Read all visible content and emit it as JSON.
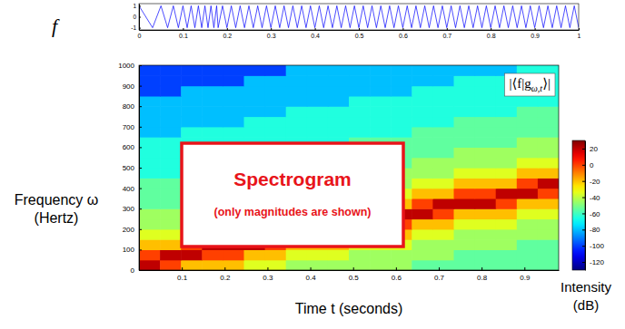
{
  "chart_data": [
    {
      "type": "line",
      "title": "f",
      "color": "#0000ff",
      "x": [
        0,
        0.0309,
        0.05,
        0.0651,
        0.0781,
        0.0896,
        0.1,
        0.1096,
        0.1186,
        0.1271,
        0.1351,
        0.1427,
        0.15,
        0.157,
        0.1637,
        0.1703,
        0.1766,
        0.18,
        0.19,
        0.2,
        0.21,
        0.22,
        0.23,
        0.24,
        0.25,
        0.26,
        0.27,
        0.28,
        0.29,
        0.3,
        0.31,
        0.32,
        0.33,
        0.34,
        0.35,
        0.36,
        0.37,
        0.38,
        0.39,
        0.4,
        0.41,
        0.42,
        0.43,
        0.44,
        0.45,
        0.46,
        0.47,
        0.48,
        0.49,
        0.5,
        0.51,
        0.52,
        0.53,
        0.54,
        0.55,
        0.56,
        0.57,
        0.58,
        0.59,
        0.6,
        0.61,
        0.62,
        0.63,
        0.64,
        0.65,
        0.66,
        0.67,
        0.68,
        0.69,
        0.7,
        0.71,
        0.72,
        0.73,
        0.74,
        0.75,
        0.76,
        0.77,
        0.78,
        0.79,
        0.8,
        0.81,
        0.82,
        0.83,
        0.84,
        0.85,
        0.86,
        0.87,
        0.88,
        0.89,
        0.9,
        0.91,
        0.92,
        0.93,
        0.94,
        0.95,
        0.96,
        0.97,
        0.98,
        0.99,
        1
      ],
      "values": [
        1,
        -1,
        1,
        -1,
        1,
        -1,
        1,
        -1,
        1,
        -1,
        1,
        -1,
        1,
        -1,
        1,
        -1,
        1,
        -1,
        1,
        -1,
        1,
        -1,
        1,
        -1,
        1,
        -1,
        1,
        -1,
        1,
        -1,
        1,
        -1,
        1,
        -1,
        1,
        -1,
        1,
        -1,
        1,
        -1,
        1,
        -1,
        1,
        -1,
        1,
        -1,
        1,
        -1,
        1,
        -1,
        1,
        -1,
        1,
        -1,
        1,
        -1,
        1,
        -1,
        1,
        -1,
        1,
        -1,
        1,
        -1,
        1,
        -1,
        1,
        -1,
        1,
        -1,
        1,
        -1,
        1,
        -1,
        1,
        -1,
        1,
        -1,
        1,
        -1,
        1,
        -1,
        1,
        -1,
        1,
        -1,
        1,
        -1,
        1,
        -1,
        1,
        -1,
        1,
        -1,
        1,
        -1,
        1,
        -1,
        1,
        -1
      ],
      "xlim": [
        0,
        1
      ],
      "ylim": [
        -1.2,
        1.2
      ],
      "xticks": [
        0,
        0.1,
        0.2,
        0.3,
        0.4,
        0.5,
        0.6,
        0.7,
        0.8,
        0.9,
        1
      ],
      "yticks": [
        -1,
        0,
        1
      ]
    },
    {
      "type": "heatmap",
      "x_label": "Time t (seconds)",
      "y_label": [
        "Frequency ω",
        "(Hertz)"
      ],
      "corner_label": [
        "|⟨f|g",
        "ω,t",
        "⟩|"
      ],
      "annotation": [
        "Spectrogram",
        "(only magnitudes are shown)"
      ],
      "xlim": [
        0,
        0.98
      ],
      "ylim": [
        0,
        1000
      ],
      "xticks": [
        0.1,
        0.2,
        0.3,
        0.4,
        0.5,
        0.6,
        0.7,
        0.8,
        0.9
      ],
      "yticks": [
        0,
        100,
        200,
        300,
        400,
        500,
        600,
        700,
        800,
        900,
        1000
      ],
      "x": [
        0.0245,
        0.0735,
        0.1225,
        0.1715,
        0.2205,
        0.2695,
        0.3185,
        0.3675,
        0.4165,
        0.4655,
        0.5145,
        0.5635,
        0.6125,
        0.6615,
        0.7105,
        0.7595,
        0.8085,
        0.8575,
        0.9065,
        0.9555
      ],
      "y": [
        25,
        75,
        125,
        175,
        225,
        275,
        325,
        375,
        425,
        475,
        525,
        575,
        625,
        675,
        725,
        775,
        825,
        875,
        925,
        975
      ],
      "cells": [
        [
          20,
          0,
          -20,
          -20,
          -20,
          -35,
          -35,
          -45,
          -45,
          -45,
          -45,
          -45,
          -45,
          -55,
          -55,
          -55,
          -55,
          -55,
          -55,
          -55
        ],
        [
          0,
          20,
          20,
          0,
          0,
          -20,
          -20,
          -35,
          -35,
          -35,
          -45,
          -45,
          -45,
          -45,
          -45,
          -55,
          -55,
          -55,
          -55,
          -55
        ],
        [
          -20,
          -20,
          0,
          20,
          20,
          20,
          0,
          -20,
          -20,
          -20,
          -35,
          -35,
          -35,
          -45,
          -45,
          -45,
          -45,
          -45,
          -55,
          -55
        ],
        [
          -35,
          -35,
          -20,
          -20,
          -20,
          0,
          20,
          20,
          20,
          0,
          -20,
          -20,
          -20,
          -35,
          -35,
          -45,
          -45,
          -45,
          -45,
          -45
        ],
        [
          -45,
          -45,
          -35,
          -35,
          -35,
          -20,
          -20,
          0,
          0,
          20,
          20,
          0,
          0,
          -20,
          -20,
          -35,
          -35,
          -35,
          -45,
          -45
        ],
        [
          -45,
          -45,
          -45,
          -45,
          -45,
          -35,
          -35,
          -20,
          -20,
          -20,
          0,
          20,
          20,
          20,
          0,
          -20,
          -20,
          -20,
          -35,
          -35
        ],
        [
          -55,
          -55,
          -45,
          -45,
          -45,
          -45,
          -45,
          -35,
          -35,
          -35,
          -20,
          -20,
          -20,
          0,
          20,
          20,
          20,
          0,
          -20,
          -20
        ],
        [
          -55,
          -55,
          -55,
          -55,
          -55,
          -45,
          -45,
          -45,
          -45,
          -45,
          -35,
          -35,
          -35,
          -20,
          -20,
          0,
          0,
          20,
          20,
          0
        ],
        [
          -55,
          -55,
          -55,
          -55,
          -55,
          -55,
          -55,
          -45,
          -45,
          -45,
          -45,
          -45,
          -45,
          -35,
          -35,
          -20,
          -20,
          -20,
          0,
          20
        ],
        [
          -65,
          -65,
          -55,
          -55,
          -55,
          -55,
          -55,
          -55,
          -55,
          -55,
          -45,
          -45,
          -45,
          -45,
          -45,
          -35,
          -35,
          -35,
          -20,
          -20
        ],
        [
          -65,
          -65,
          -65,
          -65,
          -65,
          -55,
          -55,
          -55,
          -55,
          -55,
          -55,
          -55,
          -55,
          -45,
          -45,
          -45,
          -45,
          -45,
          -35,
          -35
        ],
        [
          -65,
          -65,
          -65,
          -65,
          -65,
          -65,
          -65,
          -55,
          -55,
          -55,
          -55,
          -55,
          -55,
          -55,
          -55,
          -45,
          -45,
          -45,
          -45,
          -45
        ],
        [
          -65,
          -65,
          -65,
          -65,
          -65,
          -65,
          -65,
          -65,
          -65,
          -65,
          -55,
          -55,
          -55,
          -55,
          -55,
          -55,
          -55,
          -55,
          -45,
          -45
        ],
        [
          -80,
          -80,
          -65,
          -65,
          -65,
          -65,
          -65,
          -65,
          -65,
          -65,
          -65,
          -65,
          -65,
          -55,
          -55,
          -55,
          -55,
          -55,
          -55,
          -55
        ],
        [
          -80,
          -80,
          -80,
          -80,
          -80,
          -65,
          -65,
          -65,
          -65,
          -65,
          -65,
          -65,
          -65,
          -65,
          -65,
          -55,
          -55,
          -55,
          -55,
          -55
        ],
        [
          -80,
          -80,
          -80,
          -80,
          -80,
          -80,
          -80,
          -65,
          -65,
          -65,
          -65,
          -65,
          -65,
          -65,
          -65,
          -65,
          -65,
          -65,
          -55,
          -55
        ],
        [
          -80,
          -80,
          -80,
          -80,
          -80,
          -80,
          -80,
          -80,
          -80,
          -80,
          -65,
          -65,
          -65,
          -65,
          -65,
          -65,
          -65,
          -65,
          -65,
          -65
        ],
        [
          -100,
          -100,
          -80,
          -80,
          -80,
          -80,
          -80,
          -80,
          -80,
          -80,
          -80,
          -80,
          -80,
          -65,
          -65,
          -65,
          -65,
          -65,
          -65,
          -65
        ],
        [
          -100,
          -100,
          -100,
          -100,
          -100,
          -80,
          -80,
          -80,
          -80,
          -80,
          -80,
          -80,
          -80,
          -80,
          -80,
          -65,
          -65,
          -65,
          -65,
          -65
        ],
        [
          -100,
          -100,
          -100,
          -100,
          -100,
          -100,
          -100,
          -80,
          -80,
          -80,
          -80,
          -80,
          -80,
          -80,
          -80,
          -80,
          -80,
          -80,
          -65,
          -65
        ]
      ],
      "colorbar": {
        "range": [
          -130,
          30
        ],
        "ticks": [
          20,
          0,
          -20,
          -40,
          -60,
          -80,
          -100,
          -120
        ],
        "label": [
          "Intensity",
          "(dB)"
        ]
      }
    }
  ]
}
